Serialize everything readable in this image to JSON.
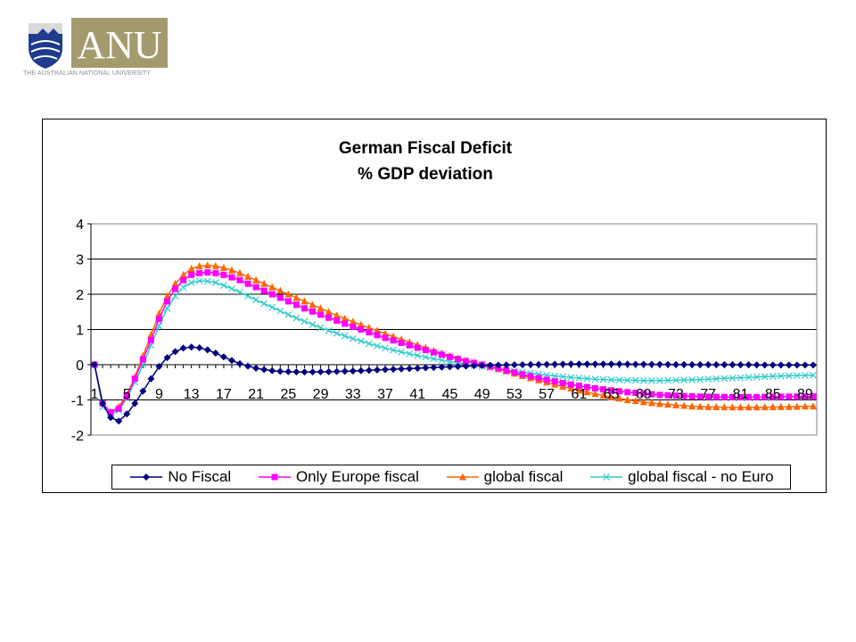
{
  "logo": {
    "wordmark": "ANU",
    "tagline": "THE AUSTRALIAN NATIONAL UNIVERSITY",
    "colors": {
      "crest_blue": "#1f3b8c",
      "wordmark_bg": "#a39a6e"
    }
  },
  "chart_data": {
    "type": "line",
    "title": "German Fiscal Deficit",
    "subtitle": "% GDP deviation",
    "xlabel": "",
    "ylabel": "",
    "x_range": [
      1,
      90
    ],
    "x_ticks": [
      "1",
      "5",
      "9",
      "13",
      "17",
      "21",
      "25",
      "29",
      "33",
      "37",
      "41",
      "45",
      "49",
      "53",
      "57",
      "61",
      "65",
      "69",
      "73",
      "77",
      "81",
      "85",
      "89"
    ],
    "ylim": [
      -2,
      4
    ],
    "y_ticks": [
      "4",
      "3",
      "2",
      "1",
      "0",
      "-1",
      "-2"
    ],
    "grid": true,
    "legend_position": "bottom",
    "series": [
      {
        "name": "No Fiscal",
        "color": "#000080",
        "marker": "diamond",
        "points": [
          [
            1,
            0
          ],
          [
            2,
            -1.1
          ],
          [
            3,
            -1.5
          ],
          [
            4,
            -1.6
          ],
          [
            5,
            -1.4
          ],
          [
            6,
            -1.1
          ],
          [
            7,
            -0.75
          ],
          [
            8,
            -0.4
          ],
          [
            9,
            -0.05
          ],
          [
            10,
            0.2
          ],
          [
            11,
            0.37
          ],
          [
            12,
            0.47
          ],
          [
            13,
            0.5
          ],
          [
            14,
            0.48
          ],
          [
            15,
            0.42
          ],
          [
            16,
            0.33
          ],
          [
            17,
            0.22
          ],
          [
            18,
            0.12
          ],
          [
            19,
            0.03
          ],
          [
            20,
            -0.04
          ],
          [
            21,
            -0.1
          ],
          [
            22,
            -0.14
          ],
          [
            23,
            -0.17
          ],
          [
            24,
            -0.19
          ],
          [
            25,
            -0.2
          ],
          [
            27,
            -0.21
          ],
          [
            30,
            -0.2
          ],
          [
            33,
            -0.18
          ],
          [
            36,
            -0.15
          ],
          [
            39,
            -0.12
          ],
          [
            42,
            -0.09
          ],
          [
            45,
            -0.06
          ],
          [
            48,
            -0.03
          ],
          [
            51,
            -0.01
          ],
          [
            54,
            0
          ],
          [
            57,
            0.01
          ],
          [
            60,
            0.02
          ],
          [
            65,
            0.02
          ],
          [
            70,
            0.01
          ],
          [
            75,
            0
          ],
          [
            80,
            0
          ],
          [
            85,
            -0.01
          ],
          [
            90,
            -0.01
          ]
        ]
      },
      {
        "name": "Only Europe fiscal",
        "color": "#ff00ff",
        "marker": "square",
        "points": [
          [
            1,
            0
          ],
          [
            2,
            -1.1
          ],
          [
            3,
            -1.35
          ],
          [
            4,
            -1.25
          ],
          [
            5,
            -0.9
          ],
          [
            6,
            -0.4
          ],
          [
            7,
            0.15
          ],
          [
            8,
            0.7
          ],
          [
            9,
            1.3
          ],
          [
            10,
            1.8
          ],
          [
            11,
            2.15
          ],
          [
            12,
            2.4
          ],
          [
            13,
            2.55
          ],
          [
            14,
            2.6
          ],
          [
            15,
            2.62
          ],
          [
            16,
            2.6
          ],
          [
            17,
            2.55
          ],
          [
            18,
            2.48
          ],
          [
            19,
            2.4
          ],
          [
            20,
            2.3
          ],
          [
            21,
            2.2
          ],
          [
            23,
            2.0
          ],
          [
            25,
            1.8
          ],
          [
            27,
            1.6
          ],
          [
            29,
            1.42
          ],
          [
            31,
            1.25
          ],
          [
            33,
            1.08
          ],
          [
            35,
            0.92
          ],
          [
            37,
            0.76
          ],
          [
            39,
            0.62
          ],
          [
            41,
            0.48
          ],
          [
            43,
            0.35
          ],
          [
            45,
            0.22
          ],
          [
            47,
            0.1
          ],
          [
            49,
            0
          ],
          [
            51,
            -0.1
          ],
          [
            53,
            -0.22
          ],
          [
            55,
            -0.33
          ],
          [
            57,
            -0.43
          ],
          [
            59,
            -0.52
          ],
          [
            61,
            -0.6
          ],
          [
            63,
            -0.67
          ],
          [
            65,
            -0.73
          ],
          [
            67,
            -0.78
          ],
          [
            69,
            -0.82
          ],
          [
            71,
            -0.86
          ],
          [
            73,
            -0.88
          ],
          [
            75,
            -0.9
          ],
          [
            77,
            -0.91
          ],
          [
            80,
            -0.92
          ],
          [
            83,
            -0.92
          ],
          [
            86,
            -0.91
          ],
          [
            90,
            -0.9
          ]
        ]
      },
      {
        "name": "global fiscal",
        "color": "#ff6600",
        "marker": "triangle",
        "points": [
          [
            1,
            0
          ],
          [
            2,
            -1.1
          ],
          [
            3,
            -1.35
          ],
          [
            4,
            -1.2
          ],
          [
            5,
            -0.85
          ],
          [
            6,
            -0.35
          ],
          [
            7,
            0.25
          ],
          [
            8,
            0.85
          ],
          [
            9,
            1.45
          ],
          [
            10,
            1.95
          ],
          [
            11,
            2.3
          ],
          [
            12,
            2.55
          ],
          [
            13,
            2.72
          ],
          [
            14,
            2.8
          ],
          [
            15,
            2.82
          ],
          [
            16,
            2.8
          ],
          [
            17,
            2.75
          ],
          [
            18,
            2.68
          ],
          [
            19,
            2.6
          ],
          [
            20,
            2.5
          ],
          [
            21,
            2.4
          ],
          [
            23,
            2.2
          ],
          [
            25,
            2.0
          ],
          [
            27,
            1.8
          ],
          [
            29,
            1.6
          ],
          [
            31,
            1.4
          ],
          [
            33,
            1.22
          ],
          [
            35,
            1.05
          ],
          [
            37,
            0.88
          ],
          [
            39,
            0.72
          ],
          [
            41,
            0.56
          ],
          [
            43,
            0.4
          ],
          [
            45,
            0.25
          ],
          [
            47,
            0.12
          ],
          [
            49,
            0
          ],
          [
            51,
            -0.12
          ],
          [
            53,
            -0.25
          ],
          [
            55,
            -0.38
          ],
          [
            57,
            -0.5
          ],
          [
            59,
            -0.62
          ],
          [
            61,
            -0.73
          ],
          [
            63,
            -0.83
          ],
          [
            65,
            -0.92
          ],
          [
            67,
            -1.0
          ],
          [
            69,
            -1.06
          ],
          [
            71,
            -1.11
          ],
          [
            73,
            -1.15
          ],
          [
            75,
            -1.18
          ],
          [
            77,
            -1.2
          ],
          [
            80,
            -1.21
          ],
          [
            83,
            -1.21
          ],
          [
            86,
            -1.2
          ],
          [
            90,
            -1.18
          ]
        ]
      },
      {
        "name": "global fiscal - no Euro",
        "color": "#33cccc",
        "marker": "x",
        "points": [
          [
            1,
            0
          ],
          [
            2,
            -1.2
          ],
          [
            3,
            -1.4
          ],
          [
            4,
            -1.3
          ],
          [
            5,
            -0.95
          ],
          [
            6,
            -0.5
          ],
          [
            7,
            0
          ],
          [
            8,
            0.55
          ],
          [
            9,
            1.1
          ],
          [
            10,
            1.6
          ],
          [
            11,
            1.95
          ],
          [
            12,
            2.2
          ],
          [
            13,
            2.33
          ],
          [
            14,
            2.38
          ],
          [
            15,
            2.37
          ],
          [
            16,
            2.33
          ],
          [
            17,
            2.25
          ],
          [
            18,
            2.16
          ],
          [
            19,
            2.06
          ],
          [
            20,
            1.95
          ],
          [
            21,
            1.84
          ],
          [
            23,
            1.63
          ],
          [
            25,
            1.42
          ],
          [
            27,
            1.23
          ],
          [
            29,
            1.05
          ],
          [
            31,
            0.89
          ],
          [
            33,
            0.74
          ],
          [
            35,
            0.6
          ],
          [
            37,
            0.47
          ],
          [
            39,
            0.36
          ],
          [
            41,
            0.26
          ],
          [
            43,
            0.17
          ],
          [
            45,
            0.09
          ],
          [
            47,
            0.02
          ],
          [
            49,
            -0.05
          ],
          [
            51,
            -0.12
          ],
          [
            53,
            -0.18
          ],
          [
            55,
            -0.24
          ],
          [
            57,
            -0.3
          ],
          [
            59,
            -0.34
          ],
          [
            61,
            -0.38
          ],
          [
            63,
            -0.41
          ],
          [
            65,
            -0.43
          ],
          [
            67,
            -0.44
          ],
          [
            69,
            -0.45
          ],
          [
            71,
            -0.45
          ],
          [
            73,
            -0.44
          ],
          [
            75,
            -0.43
          ],
          [
            77,
            -0.41
          ],
          [
            80,
            -0.38
          ],
          [
            83,
            -0.35
          ],
          [
            86,
            -0.32
          ],
          [
            90,
            -0.3
          ]
        ]
      }
    ]
  }
}
